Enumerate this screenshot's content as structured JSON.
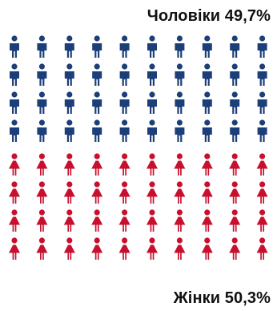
{
  "chart_data": {
    "type": "pictogram",
    "total_icons": 80,
    "columns": 10,
    "series": [
      {
        "name": "Чоловіки",
        "icon": "man-icon",
        "count": 40,
        "color": "#1c3f7a",
        "share_label": "Чоловіки 49,7%"
      },
      {
        "name": "Жінки",
        "icon": "woman-icon",
        "count": 40,
        "color": "#c8102e",
        "share_label": "Жінки 50,3%"
      }
    ]
  }
}
